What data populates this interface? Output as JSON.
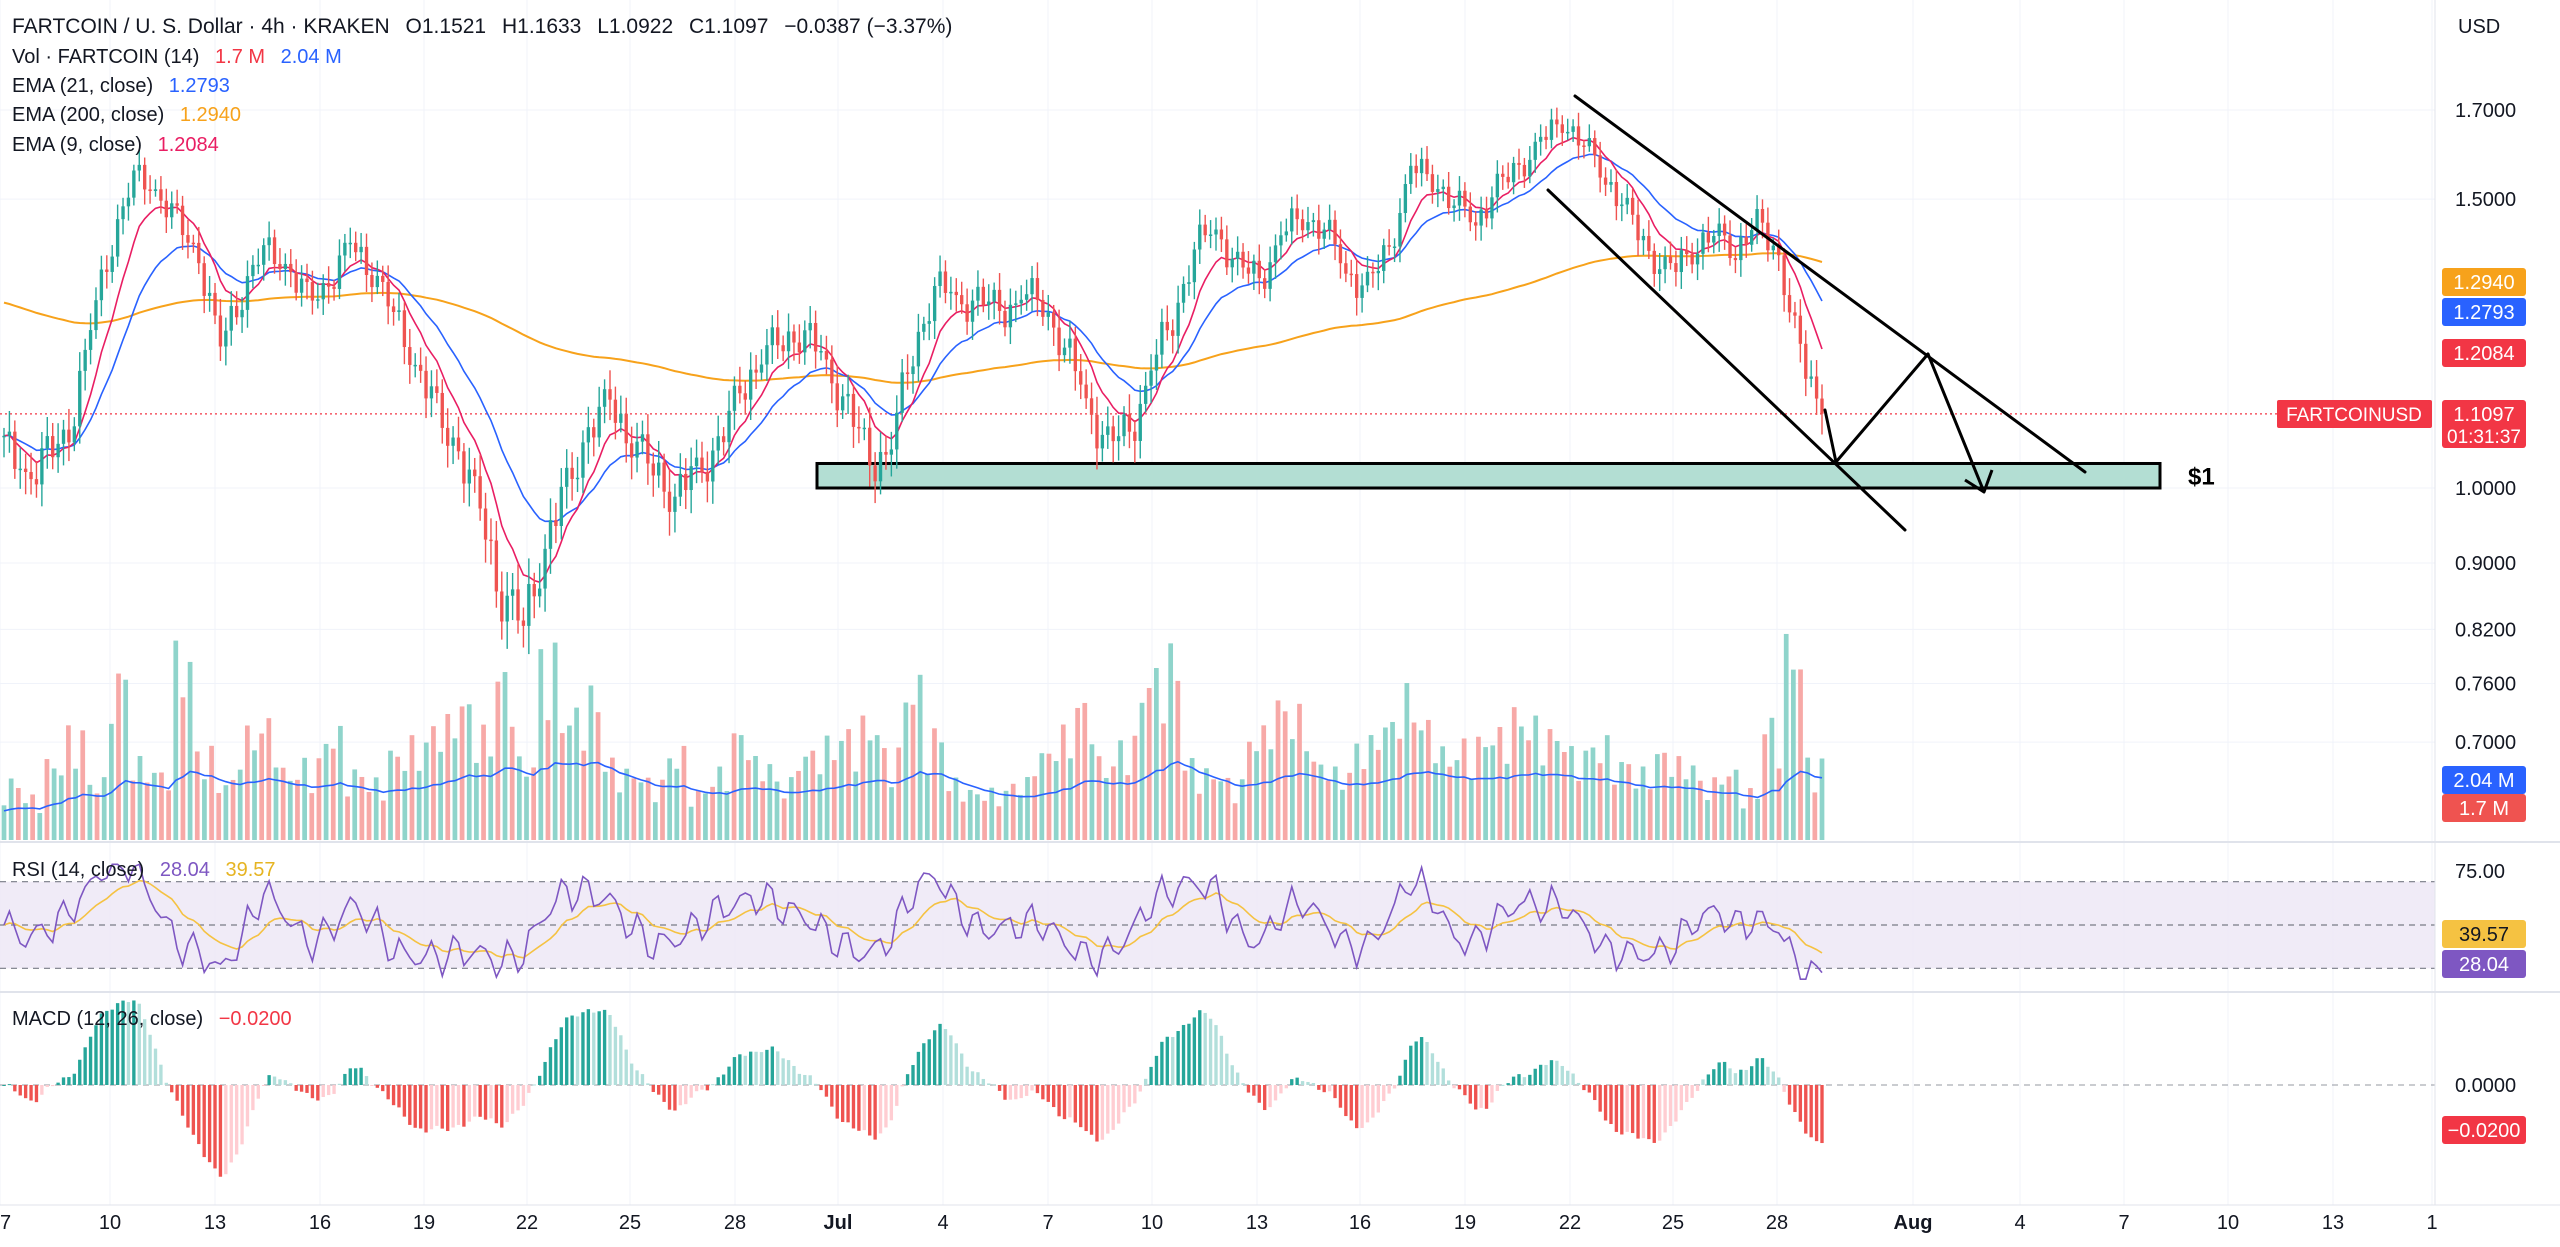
{
  "header": {
    "symbol_title": "FARTCOIN / U. S. Dollar · 4h · KRAKEN",
    "open": "O1.1521",
    "high": "H1.1633",
    "low": "L1.0922",
    "close": "C1.1097",
    "change": "−0.0387 (−3.37%)"
  },
  "legend": {
    "vol_label": "Vol · FARTCOIN (14)",
    "vol_value_1": "1.7 M",
    "vol_value_2": "2.04 M",
    "ema21_label": "EMA (21, close)",
    "ema21_value": "1.2793",
    "ema200_label": "EMA (200, close)",
    "ema200_value": "1.2940",
    "ema9_label": "EMA (9, close)",
    "ema9_value": "1.2084",
    "rsi_label": "RSI (14, close)",
    "rsi_value_1": "28.04",
    "rsi_value_2": "39.57",
    "macd_label": "MACD (12, 26, close)",
    "macd_value": "−0.0200"
  },
  "currency": "USD",
  "annotation_text": "$1",
  "colors": {
    "up": "#26a69a",
    "down": "#ef5350",
    "up_vol": "#8fd4cb",
    "down_vol": "#f7a9a7",
    "ema9": "#e91e63",
    "ema21": "#2962ff",
    "ema200": "#f7a21b",
    "rsi": "#7e57c2",
    "rsi_ma": "#f5c242",
    "zone": "#b3ded3"
  },
  "price_badges": [
    {
      "label": "",
      "value": "1.2940",
      "color": "#f7a21b"
    },
    {
      "label": "",
      "value": "1.2793",
      "color": "#2962ff"
    },
    {
      "label": "",
      "value": "1.2084",
      "color": "#f23645"
    },
    {
      "label": "FARTCOINUSD",
      "value": "1.1097",
      "sub": "01:31:37",
      "color": "#f23645"
    }
  ],
  "volume_badges": [
    {
      "value": "2.04 M",
      "color": "#2962ff"
    },
    {
      "value": "1.7 M",
      "color": "#ef5350"
    }
  ],
  "rsi_badges": [
    {
      "value": "39.57",
      "color": "#f5c242",
      "text": "#131722"
    },
    {
      "value": "28.04",
      "color": "#7e57c2",
      "text": "#ffffff"
    }
  ],
  "macd_badges": [
    {
      "value": "−0.0200",
      "color": "#f23645"
    }
  ],
  "chart_data": {
    "type": "candlestick",
    "price_axis_ticks": [
      "1.7000",
      "1.5000",
      "1.0000",
      "0.9000",
      "0.8200",
      "0.7600",
      "0.7000"
    ],
    "rsi_axis_ticks": [
      "75.00"
    ],
    "macd_axis_ticks": [
      "0.0000"
    ],
    "x_tick_labels": [
      "7",
      "10",
      "13",
      "16",
      "19",
      "22",
      "25",
      "28",
      "Jul",
      "4",
      "7",
      "10",
      "13",
      "16",
      "19",
      "22",
      "25",
      "28",
      "Aug",
      "4",
      "7",
      "10",
      "13",
      "1"
    ],
    "ema_9_last": 1.2084,
    "ema_21_last": 1.2793,
    "ema_200_last": 1.294,
    "last_close": 1.1097,
    "support_zone": [
      1.0,
      1.035
    ],
    "rsi_bands": [
      30,
      50,
      70
    ],
    "rsi_last": 28.04,
    "rsi_ma_last": 39.57,
    "macd_hist_last": -0.02,
    "close_path": [
      1.06,
      1.02,
      1.04,
      1.08,
      1.25,
      1.42,
      1.55,
      1.52,
      1.45,
      1.38,
      1.22,
      1.32,
      1.4,
      1.37,
      1.3,
      1.33,
      1.41,
      1.36,
      1.28,
      1.19,
      1.11,
      1.05,
      0.97,
      0.86,
      0.83,
      0.92,
      1.0,
      1.08,
      1.13,
      1.07,
      1.03,
      0.99,
      1.02,
      1.06,
      1.14,
      1.21,
      1.23,
      1.25,
      1.18,
      1.12,
      1.03,
      1.07,
      1.21,
      1.33,
      1.3,
      1.3,
      1.28,
      1.31,
      1.3,
      1.22,
      1.13,
      1.06,
      1.08,
      1.18,
      1.27,
      1.4,
      1.44,
      1.36,
      1.34,
      1.42,
      1.47,
      1.44,
      1.36,
      1.32,
      1.4,
      1.56,
      1.55,
      1.49,
      1.46,
      1.52,
      1.57,
      1.62,
      1.68,
      1.62,
      1.55,
      1.47,
      1.39,
      1.35,
      1.4,
      1.43,
      1.4,
      1.45,
      1.38,
      1.2,
      1.11
    ],
    "volume_rel": [
      0.3,
      0.22,
      0.4,
      0.55,
      0.3,
      0.85,
      0.4,
      0.35,
      0.95,
      0.45,
      0.3,
      0.55,
      0.6,
      0.35,
      0.4,
      0.55,
      0.35,
      0.3,
      0.45,
      0.5,
      0.6,
      0.7,
      0.55,
      0.85,
      0.4,
      0.95,
      0.65,
      0.75,
      0.4,
      0.35,
      0.3,
      0.45,
      0.25,
      0.35,
      0.55,
      0.4,
      0.3,
      0.45,
      0.5,
      0.55,
      0.6,
      0.45,
      0.8,
      0.55,
      0.3,
      0.25,
      0.25,
      0.3,
      0.45,
      0.55,
      0.7,
      0.4,
      0.5,
      0.85,
      0.95,
      0.4,
      0.35,
      0.3,
      0.55,
      0.7,
      0.65,
      0.4,
      0.35,
      0.5,
      0.6,
      0.75,
      0.6,
      0.45,
      0.5,
      0.55,
      0.65,
      0.6,
      0.55,
      0.45,
      0.5,
      0.4,
      0.35,
      0.45,
      0.4,
      0.3,
      0.35,
      0.25,
      0.6,
      1.0,
      0.4
    ]
  }
}
